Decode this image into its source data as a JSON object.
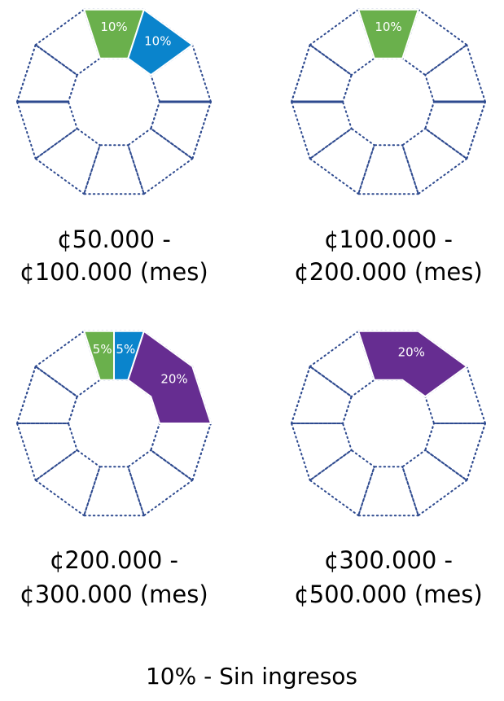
{
  "chart_data": [
    {
      "type": "pie",
      "title_lines": [
        "¢50.000 -",
        "¢100.000 (mes)"
      ],
      "values": [
        10,
        10
      ],
      "value_labels": [
        "10%",
        "10%"
      ],
      "colors": [
        "#6ab04c",
        "#0a84cc"
      ]
    },
    {
      "type": "pie",
      "title_lines": [
        "¢100.000 -",
        "¢200.000 (mes)"
      ],
      "values": [
        10
      ],
      "value_labels": [
        "10%"
      ],
      "colors": [
        "#6ab04c"
      ]
    },
    {
      "type": "pie",
      "title_lines": [
        "¢200.000 -",
        "¢300.000 (mes)"
      ],
      "values": [
        5,
        5,
        20
      ],
      "value_labels": [
        "5%",
        "5%",
        "20%"
      ],
      "colors": [
        "#6ab04c",
        "#0a84cc",
        "#662d91"
      ]
    },
    {
      "type": "pie",
      "title_lines": [
        "¢300.000 -",
        "¢500.000 (mes)"
      ],
      "values": [
        20
      ],
      "value_labels": [
        "20%"
      ],
      "colors": [
        "#662d91"
      ]
    }
  ],
  "footer": "10% - Sin ingresos"
}
